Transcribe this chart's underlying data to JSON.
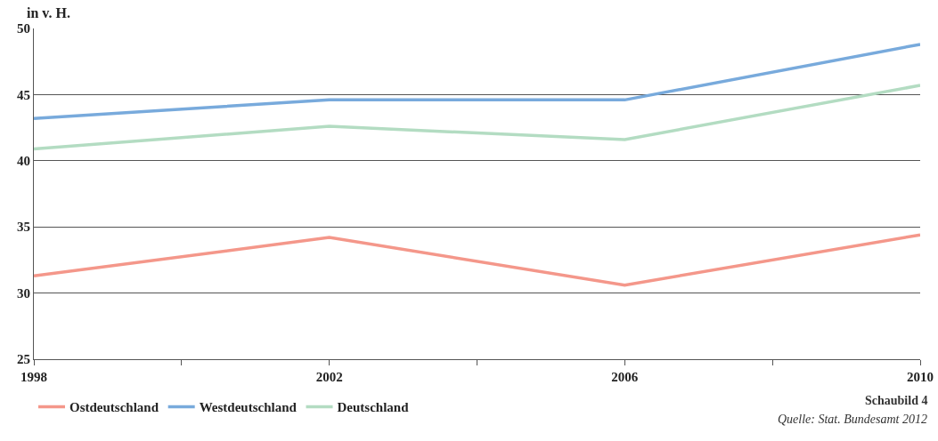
{
  "chart_data": {
    "type": "line",
    "ylabel": "in v. H.",
    "x": [
      1998,
      2002,
      2006,
      2010
    ],
    "series": [
      {
        "name": "Ostdeutschland",
        "color": "#f4978a",
        "values": [
          31.3,
          34.2,
          30.6,
          34.4
        ]
      },
      {
        "name": "Westdeutschland",
        "color": "#78aadc",
        "values": [
          43.2,
          44.6,
          44.6,
          48.8
        ]
      },
      {
        "name": "Deutschland",
        "color": "#b3dcc2",
        "values": [
          40.9,
          42.6,
          41.6,
          45.7
        ]
      }
    ],
    "xlim": [
      1998,
      2010
    ],
    "xticks": [
      1998,
      {
        "value": 2000,
        "label": null
      },
      2002,
      {
        "value": 2004,
        "label": null
      },
      2006,
      {
        "value": 2008,
        "label": null
      },
      2010
    ],
    "ylim": [
      25,
      50
    ],
    "yticks": [
      25,
      30,
      35,
      40,
      45,
      50
    ],
    "grid": "y",
    "legend": "bottom left",
    "marker": "none",
    "line_style": "solid",
    "annotations": [
      "Schaubild 4",
      "Quelle: Stat. Bundesamt 2012"
    ]
  }
}
